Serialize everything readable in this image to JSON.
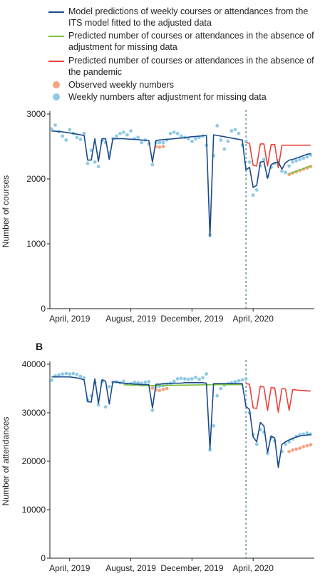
{
  "legend": [
    {
      "label": "Model predictions of weekly courses or attendances from the ITS model fitted to the adjusted data",
      "kind": "line",
      "color": "#1a4a8a"
    },
    {
      "label": "Predicted number of courses or attendances in the absence of adjustment for missing data",
      "kind": "line",
      "color": "#7bbf3a"
    },
    {
      "label": "Predicted number of courses or attendances in the absence of the pandemic",
      "kind": "line",
      "color": "#e8423a"
    },
    {
      "label": "Observed weekly numbers",
      "kind": "dot",
      "color": "#f4a582"
    },
    {
      "label": "Weekly numbers after adjustment for missing data",
      "kind": "dot",
      "color": "#8ecae6"
    }
  ],
  "chart_data": [
    {
      "panel": "",
      "type": "line",
      "ylabel": "Number of courses",
      "xlabel": "",
      "x_ticks": [
        "April, 2019",
        "August, 2019",
        "December, 2019",
        "April, 2020"
      ],
      "x_tick_weeks": [
        5,
        22,
        39,
        56
      ],
      "y_ticks": [
        0,
        1000,
        2000,
        3000
      ],
      "ylim": [
        0,
        3000
      ],
      "xlim_weeks": [
        -0.5,
        73
      ],
      "vline_week": 54,
      "series": [
        {
          "role": "model",
          "color": "#1a4a8a",
          "x": [
            0,
            1,
            2,
            3,
            4,
            5,
            6,
            7,
            8,
            9,
            10,
            11,
            12,
            13,
            14,
            15,
            16,
            17,
            18,
            19,
            20,
            21,
            22,
            23,
            24,
            25,
            26,
            27,
            28,
            29,
            30,
            31,
            32,
            33,
            34,
            35,
            36,
            37,
            38,
            39,
            40,
            41,
            42,
            43,
            44,
            45,
            46,
            47,
            48,
            49,
            50,
            51,
            52,
            53,
            54,
            55,
            56,
            57,
            58,
            59,
            60,
            61,
            62,
            63,
            64,
            65,
            66,
            67,
            68,
            69,
            70,
            71,
            72
          ],
          "y": [
            2740,
            2735,
            2730,
            2725,
            2718,
            2710,
            2700,
            2690,
            2680,
            2670,
            2290,
            2290,
            2620,
            2270,
            2620,
            2620,
            2300,
            2620,
            2620,
            2620,
            2620,
            2615,
            2612,
            2610,
            2605,
            2600,
            2597,
            2593,
            2260,
            2595,
            2600,
            2605,
            2610,
            2615,
            2620,
            2625,
            2630,
            2635,
            2645,
            2650,
            2655,
            2660,
            2665,
            2670,
            1110,
            2680,
            2670,
            2660,
            2650,
            2640,
            2630,
            2620,
            2610,
            2600,
            2140,
            2180,
            1870,
            1900,
            2260,
            2270,
            2010,
            2220,
            2250,
            2260,
            2150,
            2250,
            2290,
            2300,
            2320,
            2340,
            2360,
            2380,
            2390
          ]
        },
        {
          "role": "no_adjustment",
          "color": "#7bbf3a",
          "x": [
            66,
            67,
            68,
            69,
            70,
            71,
            72
          ],
          "y": [
            2080,
            2100,
            2120,
            2140,
            2160,
            2180,
            2200
          ]
        },
        {
          "role": "counterfactual",
          "color": "#e8423a",
          "x": [
            54,
            55,
            56,
            57,
            58,
            59,
            60,
            61,
            62,
            63,
            64,
            65,
            66,
            67,
            68,
            69,
            70,
            71,
            72
          ],
          "y": [
            2560,
            2550,
            2210,
            2200,
            2540,
            2540,
            2200,
            2530,
            2530,
            2170,
            2520,
            2520,
            2520,
            2520,
            2520,
            2520,
            2520,
            2520,
            2520
          ]
        },
        {
          "role": "observed",
          "color": "#f4a582",
          "x": [
            29,
            30,
            31,
            66,
            67,
            68,
            69,
            70,
            71,
            72
          ],
          "y": [
            2500,
            2490,
            2500,
            2070,
            2090,
            2110,
            2130,
            2150,
            2170,
            2190
          ]
        },
        {
          "role": "adjusted",
          "color": "#8ecae6",
          "x": [
            0,
            1,
            2,
            3,
            4,
            5,
            6,
            7,
            8,
            9,
            10,
            11,
            12,
            13,
            14,
            15,
            16,
            17,
            18,
            19,
            20,
            21,
            22,
            23,
            24,
            25,
            26,
            27,
            28,
            29,
            30,
            31,
            32,
            33,
            34,
            35,
            36,
            37,
            38,
            39,
            40,
            41,
            42,
            43,
            44,
            45,
            46,
            47,
            48,
            49,
            50,
            51,
            52,
            53,
            54,
            55,
            56,
            57,
            58,
            59,
            60,
            61,
            62,
            63,
            64,
            65,
            66,
            67,
            68,
            69,
            70,
            71,
            72
          ],
          "y": [
            2770,
            2830,
            2730,
            2660,
            2600,
            2760,
            2700,
            2640,
            2610,
            2700,
            2240,
            2440,
            2260,
            2190,
            2590,
            2560,
            2400,
            2620,
            2660,
            2700,
            2720,
            2680,
            2740,
            2620,
            2640,
            2560,
            2600,
            2540,
            2220,
            2560,
            2560,
            2560,
            2600,
            2700,
            2720,
            2700,
            2660,
            2640,
            2620,
            2580,
            2620,
            2640,
            2660,
            2520,
            1140,
            2360,
            2820,
            2600,
            2460,
            2580,
            2740,
            2760,
            2700,
            2520,
            2580,
            2260,
            1750,
            1830,
            2200,
            2300,
            2040,
            2180,
            2240,
            2280,
            2120,
            2100,
            2200,
            2260,
            2280,
            2300,
            2320,
            2340,
            2370
          ]
        }
      ]
    },
    {
      "panel": "B",
      "type": "line",
      "ylabel": "Number of attendances",
      "xlabel": "",
      "x_ticks": [
        "April, 2019",
        "August, 2019",
        "December, 2019",
        "April, 2020"
      ],
      "x_tick_weeks": [
        5,
        22,
        39,
        56
      ],
      "y_ticks": [
        0,
        10000,
        20000,
        30000,
        40000
      ],
      "ylim": [
        0,
        40000
      ],
      "xlim_weeks": [
        -0.5,
        73
      ],
      "vline_week": 54,
      "series": [
        {
          "role": "model",
          "color": "#1a4a8a",
          "x": [
            0,
            1,
            2,
            3,
            4,
            5,
            6,
            7,
            8,
            9,
            10,
            11,
            12,
            13,
            14,
            15,
            16,
            17,
            18,
            19,
            20,
            21,
            22,
            23,
            24,
            25,
            26,
            27,
            28,
            29,
            30,
            31,
            32,
            33,
            34,
            35,
            36,
            37,
            38,
            39,
            40,
            41,
            42,
            43,
            44,
            45,
            46,
            47,
            48,
            49,
            50,
            51,
            52,
            53,
            54,
            55,
            56,
            57,
            58,
            59,
            60,
            61,
            62,
            63,
            64,
            65,
            66,
            67,
            68,
            69,
            70,
            71,
            72
          ],
          "y": [
            37400,
            37400,
            37400,
            37400,
            37400,
            37400,
            37300,
            37200,
            37000,
            36800,
            32300,
            32200,
            37000,
            31900,
            36800,
            36500,
            31800,
            36400,
            36300,
            36200,
            36100,
            36000,
            36000,
            35900,
            35900,
            35800,
            35800,
            35800,
            31000,
            35900,
            35900,
            36000,
            36000,
            36000,
            36100,
            36100,
            36100,
            36200,
            36200,
            36200,
            36200,
            36200,
            36200,
            36100,
            22500,
            36000,
            36000,
            36000,
            36000,
            36000,
            36000,
            36000,
            36000,
            36000,
            31300,
            30700,
            25000,
            24000,
            28000,
            27300,
            21800,
            25200,
            24800,
            18700,
            23500,
            24000,
            24400,
            24700,
            25000,
            25200,
            25300,
            25400,
            25500
          ]
        },
        {
          "role": "no_adjustment",
          "color": "#7bbf3a",
          "x": [
            20,
            21,
            22,
            23,
            24,
            25,
            26,
            27,
            46,
            47,
            48,
            49,
            50,
            51,
            52,
            53
          ],
          "y": [
            35800,
            35800,
            35700,
            35700,
            35700,
            35600,
            35600,
            35600,
            35800,
            35800,
            35800,
            35800,
            35800,
            35800,
            35800,
            35800
          ]
        },
        {
          "role": "counterfactual",
          "color": "#e8423a",
          "x": [
            54,
            55,
            56,
            57,
            58,
            59,
            60,
            61,
            62,
            63,
            64,
            65,
            66,
            67,
            68,
            69,
            70,
            71,
            72
          ],
          "y": [
            36000,
            35900,
            31000,
            30900,
            35500,
            35300,
            30500,
            35200,
            35100,
            30100,
            35000,
            34900,
            30500,
            34800,
            34700,
            34600,
            34600,
            34500,
            34500
          ]
        },
        {
          "role": "observed",
          "color": "#f4a582",
          "x": [
            28,
            29,
            30,
            31,
            32,
            66,
            67,
            68,
            69,
            70,
            71,
            72
          ],
          "y": [
            35100,
            34700,
            34600,
            34800,
            35000,
            22000,
            22300,
            22500,
            22700,
            23000,
            23200,
            23400
          ]
        },
        {
          "role": "adjusted",
          "color": "#8ecae6",
          "x": [
            0,
            1,
            2,
            3,
            4,
            5,
            6,
            7,
            8,
            9,
            10,
            11,
            12,
            13,
            14,
            15,
            16,
            17,
            18,
            19,
            20,
            21,
            22,
            23,
            24,
            25,
            26,
            27,
            28,
            29,
            30,
            31,
            32,
            33,
            34,
            35,
            36,
            37,
            38,
            39,
            40,
            41,
            42,
            43,
            44,
            45,
            46,
            47,
            48,
            49,
            50,
            51,
            52,
            53,
            54,
            55,
            56,
            57,
            58,
            59,
            60,
            61,
            62,
            63,
            64,
            65,
            66,
            67,
            68,
            69,
            70,
            71,
            72
          ],
          "y": [
            36700,
            37600,
            37800,
            38000,
            38100,
            38000,
            38100,
            37900,
            37500,
            37200,
            32600,
            33500,
            36200,
            31600,
            36400,
            31200,
            35400,
            36300,
            36400,
            36200,
            36500,
            35900,
            36000,
            36300,
            36200,
            36100,
            36300,
            36400,
            30500,
            35300,
            35500,
            35600,
            35900,
            36100,
            36500,
            37000,
            37100,
            37000,
            36900,
            37000,
            37300,
            36900,
            37200,
            38000,
            22300,
            27300,
            33500,
            35000,
            35700,
            36000,
            36200,
            36400,
            36600,
            36800,
            37000,
            30000,
            25500,
            23500,
            26500,
            26000,
            21600,
            24800,
            24200,
            19800,
            22000,
            23500,
            24000,
            24600,
            25100,
            25500,
            25600,
            25800,
            25600
          ]
        }
      ]
    }
  ]
}
